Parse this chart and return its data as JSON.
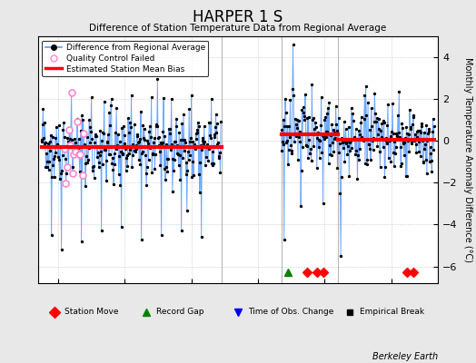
{
  "title": "HARPER 1 S",
  "subtitle": "Difference of Station Temperature Data from Regional Average",
  "ylabel": "Monthly Temperature Anomaly Difference (°C)",
  "xlim": [
    1917,
    1977
  ],
  "ylim": [
    -6.8,
    5.0
  ],
  "yticks": [
    -6,
    -4,
    -2,
    0,
    2,
    4
  ],
  "xticks": [
    1920,
    1930,
    1940,
    1950,
    1960,
    1970
  ],
  "background_color": "#e8e8e8",
  "plot_bg_color": "#ffffff",
  "gap_start": 1944.5,
  "gap_end": 1953.5,
  "segment1_start": 1917.5,
  "segment1_end": 1944.5,
  "segment2_start": 1953.5,
  "segment2_end": 1976.5,
  "bias1": -0.3,
  "bias2_a": 0.3,
  "bias2_b": 0.05,
  "bias2_break": 1962.0,
  "station_moves": [
    1957.3,
    1958.8,
    1959.8,
    1972.3,
    1973.3
  ],
  "record_gap_x": 1954.5,
  "vertical_lines": [
    1944.5,
    1953.5,
    1962.0
  ],
  "marker_y": -6.3,
  "seed": 42
}
